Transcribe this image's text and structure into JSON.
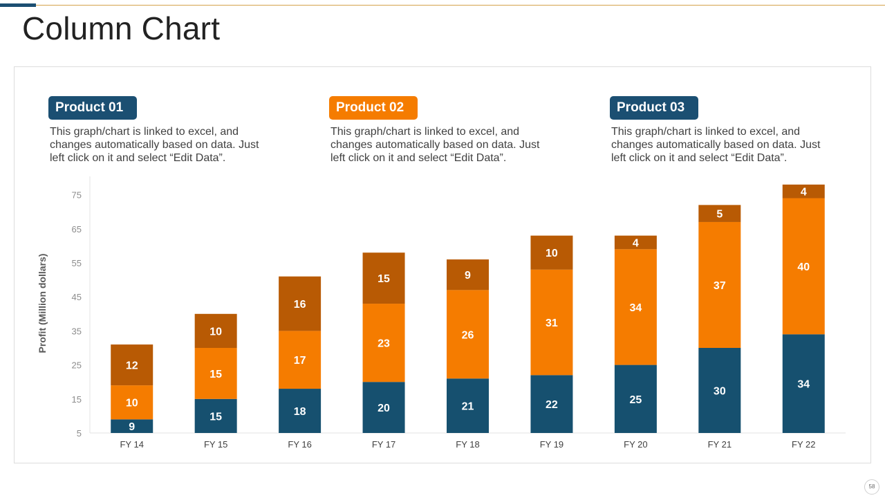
{
  "page": {
    "title": "Column Chart",
    "page_number": "58"
  },
  "products": [
    {
      "label": "Product 01",
      "color": "#1b4f72",
      "description": "This graph/chart is linked to excel, and changes automatically based on data. Just left click on it and select “Edit Data”."
    },
    {
      "label": "Product 02",
      "color": "#f57c00",
      "description": "This graph/chart is linked to excel, and changes automatically based on data. Just left click on it and select “Edit Data”."
    },
    {
      "label": "Product 03",
      "color": "#1b4f72",
      "description": "This graph/chart is linked to excel, and changes automatically based on data. Just left click on it and select “Edit Data”."
    }
  ],
  "chart_data": {
    "type": "bar",
    "stacked": true,
    "title": "",
    "xlabel": "",
    "ylabel": "Profit  (Million dollars)",
    "ylim": [
      5,
      80
    ],
    "yticks": [
      5,
      15,
      25,
      35,
      45,
      55,
      65,
      75
    ],
    "categories": [
      "FY 14",
      "FY 15",
      "FY 16",
      "FY 17",
      "FY 18",
      "FY 19",
      "FY 20",
      "FY 21",
      "FY 22"
    ],
    "series": [
      {
        "name": "Product 01",
        "color": "#16506f",
        "values": [
          9,
          15,
          18,
          20,
          21,
          22,
          25,
          30,
          34
        ]
      },
      {
        "name": "Product 02",
        "color": "#f57c00",
        "values": [
          10,
          15,
          17,
          23,
          26,
          31,
          34,
          37,
          40
        ]
      },
      {
        "name": "Product 03",
        "color": "#b85a04",
        "values": [
          12,
          10,
          16,
          15,
          9,
          10,
          4,
          5,
          4
        ]
      }
    ]
  }
}
